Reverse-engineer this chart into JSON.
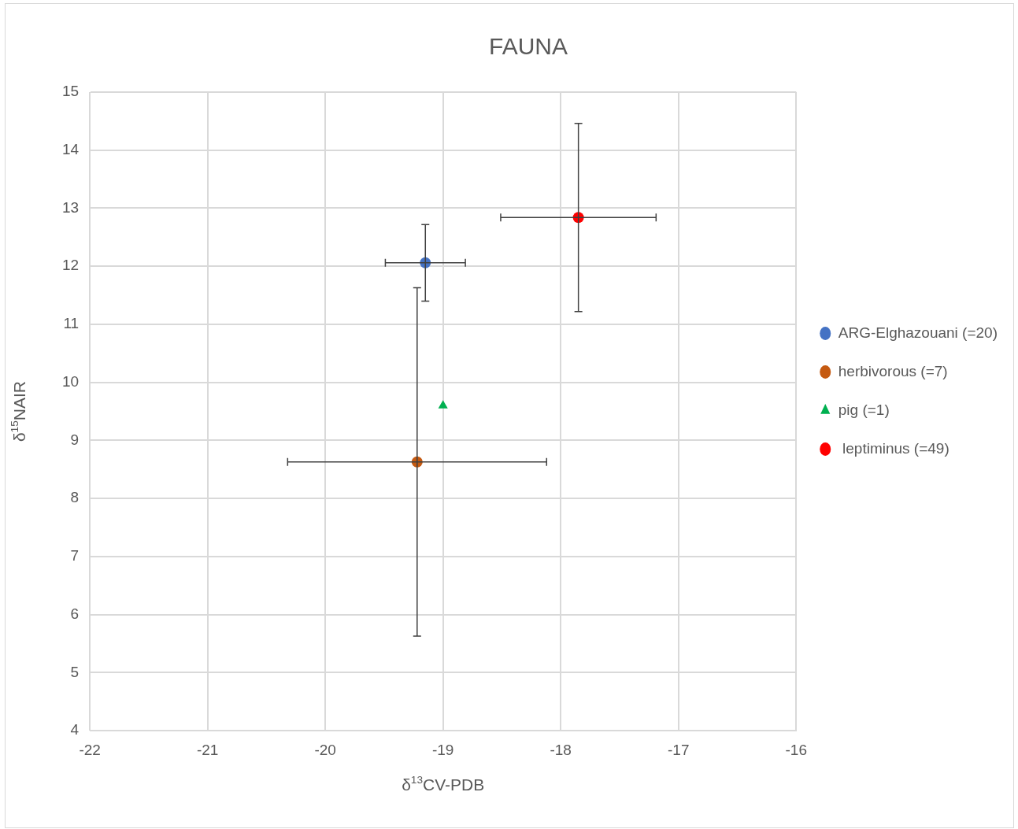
{
  "chart_data": {
    "type": "scatter",
    "title": "FAUNA",
    "xlabel": "δ$^{13}$CV-PDB",
    "ylabel": "δ$^{15}$NAIR",
    "xlim": [
      -22,
      -16
    ],
    "xticks": [
      -22,
      -21,
      -20,
      -19,
      -18,
      -17,
      -16
    ],
    "ylim": [
      4,
      15
    ],
    "yticks": [
      4,
      5,
      6,
      7,
      8,
      9,
      10,
      11,
      12,
      13,
      14,
      15
    ],
    "grid": true,
    "legend": "right",
    "series": [
      {
        "name": "ARG-Elghazouani (=20)",
        "color": "#4472c4",
        "marker": "circle",
        "x": [
          -19.15
        ],
        "values": [
          12.06
        ],
        "errors": [
          0.66
        ],
        "xerrors": [
          0.34
        ]
      },
      {
        "name": "herbivorous (=7)",
        "color": "#c55a11",
        "marker": "circle",
        "x": [
          -19.22
        ],
        "values": [
          8.63
        ],
        "errors": [
          3.0
        ],
        "xerrors": [
          1.1
        ]
      },
      {
        "name": "pig (=1)",
        "color": "#00b050",
        "marker": "triangle",
        "x": [
          -19.0
        ],
        "values": [
          9.6
        ]
      },
      {
        "name": " leptiminus (=49)",
        "color": "#ff0000",
        "marker": "circle",
        "x": [
          -17.85
        ],
        "values": [
          12.84
        ],
        "errors": [
          1.62
        ],
        "xerrors": [
          0.66
        ]
      }
    ]
  }
}
